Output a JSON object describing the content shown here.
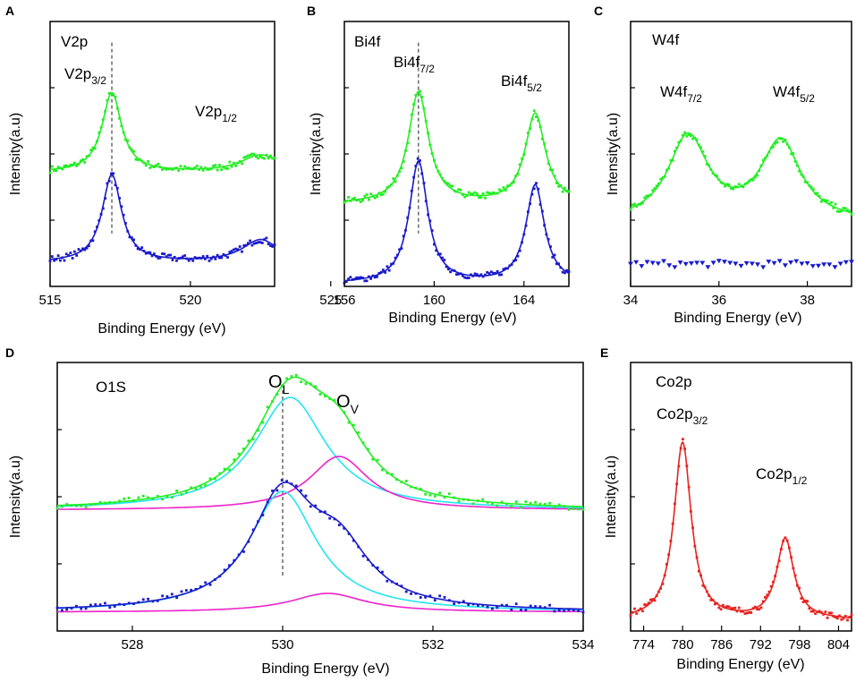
{
  "colors": {
    "green": "#22ee22",
    "blue": "#1a1acc",
    "cyan": "#22e5f0",
    "magenta": "#ee22cc",
    "red": "#e8221e"
  },
  "chart_data": [
    {
      "id": "A",
      "type": "line",
      "title": "V2p",
      "xlabel": "Binding Energy (eV)",
      "ylabel": "Intensity(a.u)",
      "xlim": [
        515,
        523
      ],
      "ylim": [
        0,
        1
      ],
      "xticks": [
        515,
        520,
        525
      ],
      "tick_labels": [
        "515",
        "520",
        "525"
      ],
      "annotations": [
        {
          "id": "v2p32",
          "base": "V2p",
          "sub": "3/2",
          "at": [
            517.2,
            0.84
          ]
        },
        {
          "id": "v2p12",
          "base": "V2p",
          "sub": "1/2",
          "at": [
            522.0,
            0.68
          ]
        }
      ],
      "dashed_line_x": 517.2,
      "series": [
        {
          "name": "green-fit",
          "color": "green",
          "style": "line",
          "baseline": 0.43,
          "peaks": [
            [
              517.2,
              0.3,
              0.42
            ],
            [
              522.5,
              0.065,
              0.85
            ]
          ]
        },
        {
          "name": "green-data",
          "color": "green",
          "style": "dots",
          "baseline": 0.43,
          "peaks": [
            [
              517.2,
              0.3,
              0.42
            ],
            [
              522.5,
              0.065,
              0.85
            ]
          ]
        },
        {
          "name": "blue-fit",
          "color": "blue",
          "style": "line",
          "baseline": 0.09,
          "peaks": [
            [
              517.2,
              0.33,
              0.42
            ],
            [
              522.5,
              0.085,
              0.8
            ]
          ]
        },
        {
          "name": "blue-data",
          "color": "blue",
          "style": "dots",
          "baseline": 0.09,
          "peaks": [
            [
              517.2,
              0.33,
              0.42
            ],
            [
              522.5,
              0.085,
              0.8
            ]
          ]
        }
      ]
    },
    {
      "id": "B",
      "type": "line",
      "title": "Bi4f",
      "xlabel": "Binding Energy (eV)",
      "ylabel": "Intensity(a.u)",
      "xlim": [
        156,
        166
      ],
      "ylim": [
        0,
        1
      ],
      "xticks": [
        156,
        160,
        164
      ],
      "tick_labels": [
        "156",
        "160",
        "164"
      ],
      "annotations": [
        {
          "id": "bi4f72",
          "base": "Bi4f",
          "sub": "7/2",
          "at": [
            159.3,
            0.88
          ]
        },
        {
          "id": "bi4f52",
          "base": "Bi4f",
          "sub": "5/2",
          "at": [
            164.4,
            0.79
          ]
        }
      ],
      "dashed_line_x": 159.3,
      "series": [
        {
          "name": "green-fit",
          "color": "green",
          "style": "line",
          "baseline": 0.31,
          "peaks": [
            [
              159.3,
              0.42,
              0.55
            ],
            [
              164.5,
              0.34,
              0.55
            ]
          ]
        },
        {
          "name": "green-data",
          "color": "green",
          "style": "dots",
          "baseline": 0.31,
          "peaks": [
            [
              159.3,
              0.42,
              0.55
            ],
            [
              164.5,
              0.34,
              0.55
            ]
          ]
        },
        {
          "name": "blue-fit",
          "color": "blue",
          "style": "line",
          "baseline": 0.01,
          "peaks": [
            [
              159.3,
              0.46,
              0.5
            ],
            [
              164.5,
              0.37,
              0.5
            ]
          ]
        },
        {
          "name": "blue-data",
          "color": "blue",
          "style": "dots",
          "baseline": 0.01,
          "peaks": [
            [
              159.3,
              0.46,
              0.5
            ],
            [
              164.5,
              0.37,
              0.5
            ]
          ]
        }
      ]
    },
    {
      "id": "C",
      "type": "line",
      "title": "W4f",
      "xlabel": "Binding Energy (eV)",
      "ylabel": "Intensity(a.u)",
      "xlim": [
        34,
        39
      ],
      "ylim": [
        0,
        1
      ],
      "xticks": [
        34,
        36,
        38
      ],
      "tick_labels": [
        "34",
        "36",
        "38"
      ],
      "annotations": [
        {
          "id": "w4f72",
          "base": "W4f",
          "sub": "7/2",
          "at": [
            35.25,
            0.79
          ]
        },
        {
          "id": "w4f52",
          "base": "W4f",
          "sub": "5/2",
          "at": [
            37.4,
            0.79
          ]
        }
      ],
      "series": [
        {
          "name": "green-fit",
          "color": "green",
          "style": "line",
          "baseline": 0.24,
          "peaks": [
            [
              35.3,
              0.32,
              0.55
            ],
            [
              37.4,
              0.3,
              0.55
            ]
          ]
        },
        {
          "name": "green-data",
          "color": "green",
          "style": "dots",
          "baseline": 0.24,
          "peaks": [
            [
              35.3,
              0.32,
              0.55
            ],
            [
              37.4,
              0.3,
              0.55
            ]
          ]
        },
        {
          "name": "blue-data",
          "color": "blue",
          "style": "triangles",
          "baseline": 0.085,
          "peaks": []
        }
      ]
    },
    {
      "id": "D",
      "type": "line",
      "title": "O1S",
      "xlabel": "Binding Energy (eV)",
      "ylabel": "Intensity(a.u)",
      "xlim": [
        527,
        534
      ],
      "ylim": [
        0,
        1
      ],
      "xticks": [
        528,
        530,
        532,
        534
      ],
      "tick_labels": [
        "528",
        "530",
        "532",
        "534"
      ],
      "annotations": [
        {
          "id": "ol",
          "base": "O",
          "sub": "L",
          "at": [
            530.0,
            0.92
          ]
        },
        {
          "id": "ov",
          "base": "O",
          "sub": "V",
          "at": [
            530.8,
            0.85
          ]
        }
      ],
      "dashed_line_x": 530.0,
      "series": [
        {
          "name": "green-lattice",
          "color": "cyan",
          "style": "line",
          "baseline": 0.45,
          "peaks": [
            [
              530.1,
              0.42,
              0.58
            ]
          ]
        },
        {
          "name": "green-vacancy",
          "color": "magenta",
          "style": "line",
          "baseline": 0.45,
          "peaks": [
            [
              530.75,
              0.2,
              0.48
            ]
          ]
        },
        {
          "name": "green-fit",
          "color": "green",
          "style": "line",
          "baseline": 0.45,
          "peaks": [
            [
              530.1,
              0.42,
              0.58
            ],
            [
              530.75,
              0.2,
              0.48
            ]
          ]
        },
        {
          "name": "green-data",
          "color": "green",
          "style": "dots",
          "baseline": 0.45,
          "peaks": [
            [
              530.1,
              0.42,
              0.58
            ],
            [
              530.75,
              0.2,
              0.48
            ]
          ]
        },
        {
          "name": "blue-lattice",
          "color": "cyan",
          "style": "line",
          "baseline": 0.07,
          "peaks": [
            [
              530.0,
              0.45,
              0.55
            ]
          ]
        },
        {
          "name": "blue-vacancy",
          "color": "magenta",
          "style": "line",
          "baseline": 0.07,
          "peaks": [
            [
              530.6,
              0.07,
              0.6
            ]
          ]
        },
        {
          "name": "blue-fit",
          "color": "blue",
          "style": "line",
          "baseline": 0.07,
          "peaks": [
            [
              530.0,
              0.42,
              0.52
            ],
            [
              530.75,
              0.2,
              0.5
            ]
          ]
        },
        {
          "name": "blue-data",
          "color": "blue",
          "style": "dots",
          "baseline": 0.07,
          "peaks": [
            [
              530.0,
              0.42,
              0.52
            ],
            [
              530.75,
              0.2,
              0.5
            ]
          ]
        }
      ]
    },
    {
      "id": "E",
      "type": "line",
      "title": "Co2p",
      "xlabel": "Binding Energy (eV)",
      "ylabel": "Intensity(a.u)",
      "xlim": [
        772,
        806
      ],
      "ylim": [
        0,
        1
      ],
      "xticks": [
        774,
        780,
        786,
        792,
        798,
        804
      ],
      "tick_labels": [
        "774",
        "780",
        "786",
        "792",
        "798",
        "804"
      ],
      "annotations": [
        {
          "id": "co2p32",
          "base": "Co2p",
          "sub": "3/2",
          "at": [
            780.0,
            0.84
          ]
        },
        {
          "id": "co2p12",
          "base": "Co2p",
          "sub": "1/2",
          "at": [
            795.5,
            0.6
          ]
        }
      ],
      "series": [
        {
          "name": "red-fit",
          "color": "red",
          "style": "line",
          "baseline": 0.04,
          "peaks": [
            [
              780.0,
              0.66,
              1.6
            ],
            [
              795.8,
              0.3,
              1.6
            ]
          ]
        },
        {
          "name": "red-data",
          "color": "red",
          "style": "dots",
          "baseline": 0.04,
          "peaks": [
            [
              780.0,
              0.66,
              1.6
            ],
            [
              795.8,
              0.3,
              1.6
            ]
          ]
        }
      ]
    }
  ]
}
